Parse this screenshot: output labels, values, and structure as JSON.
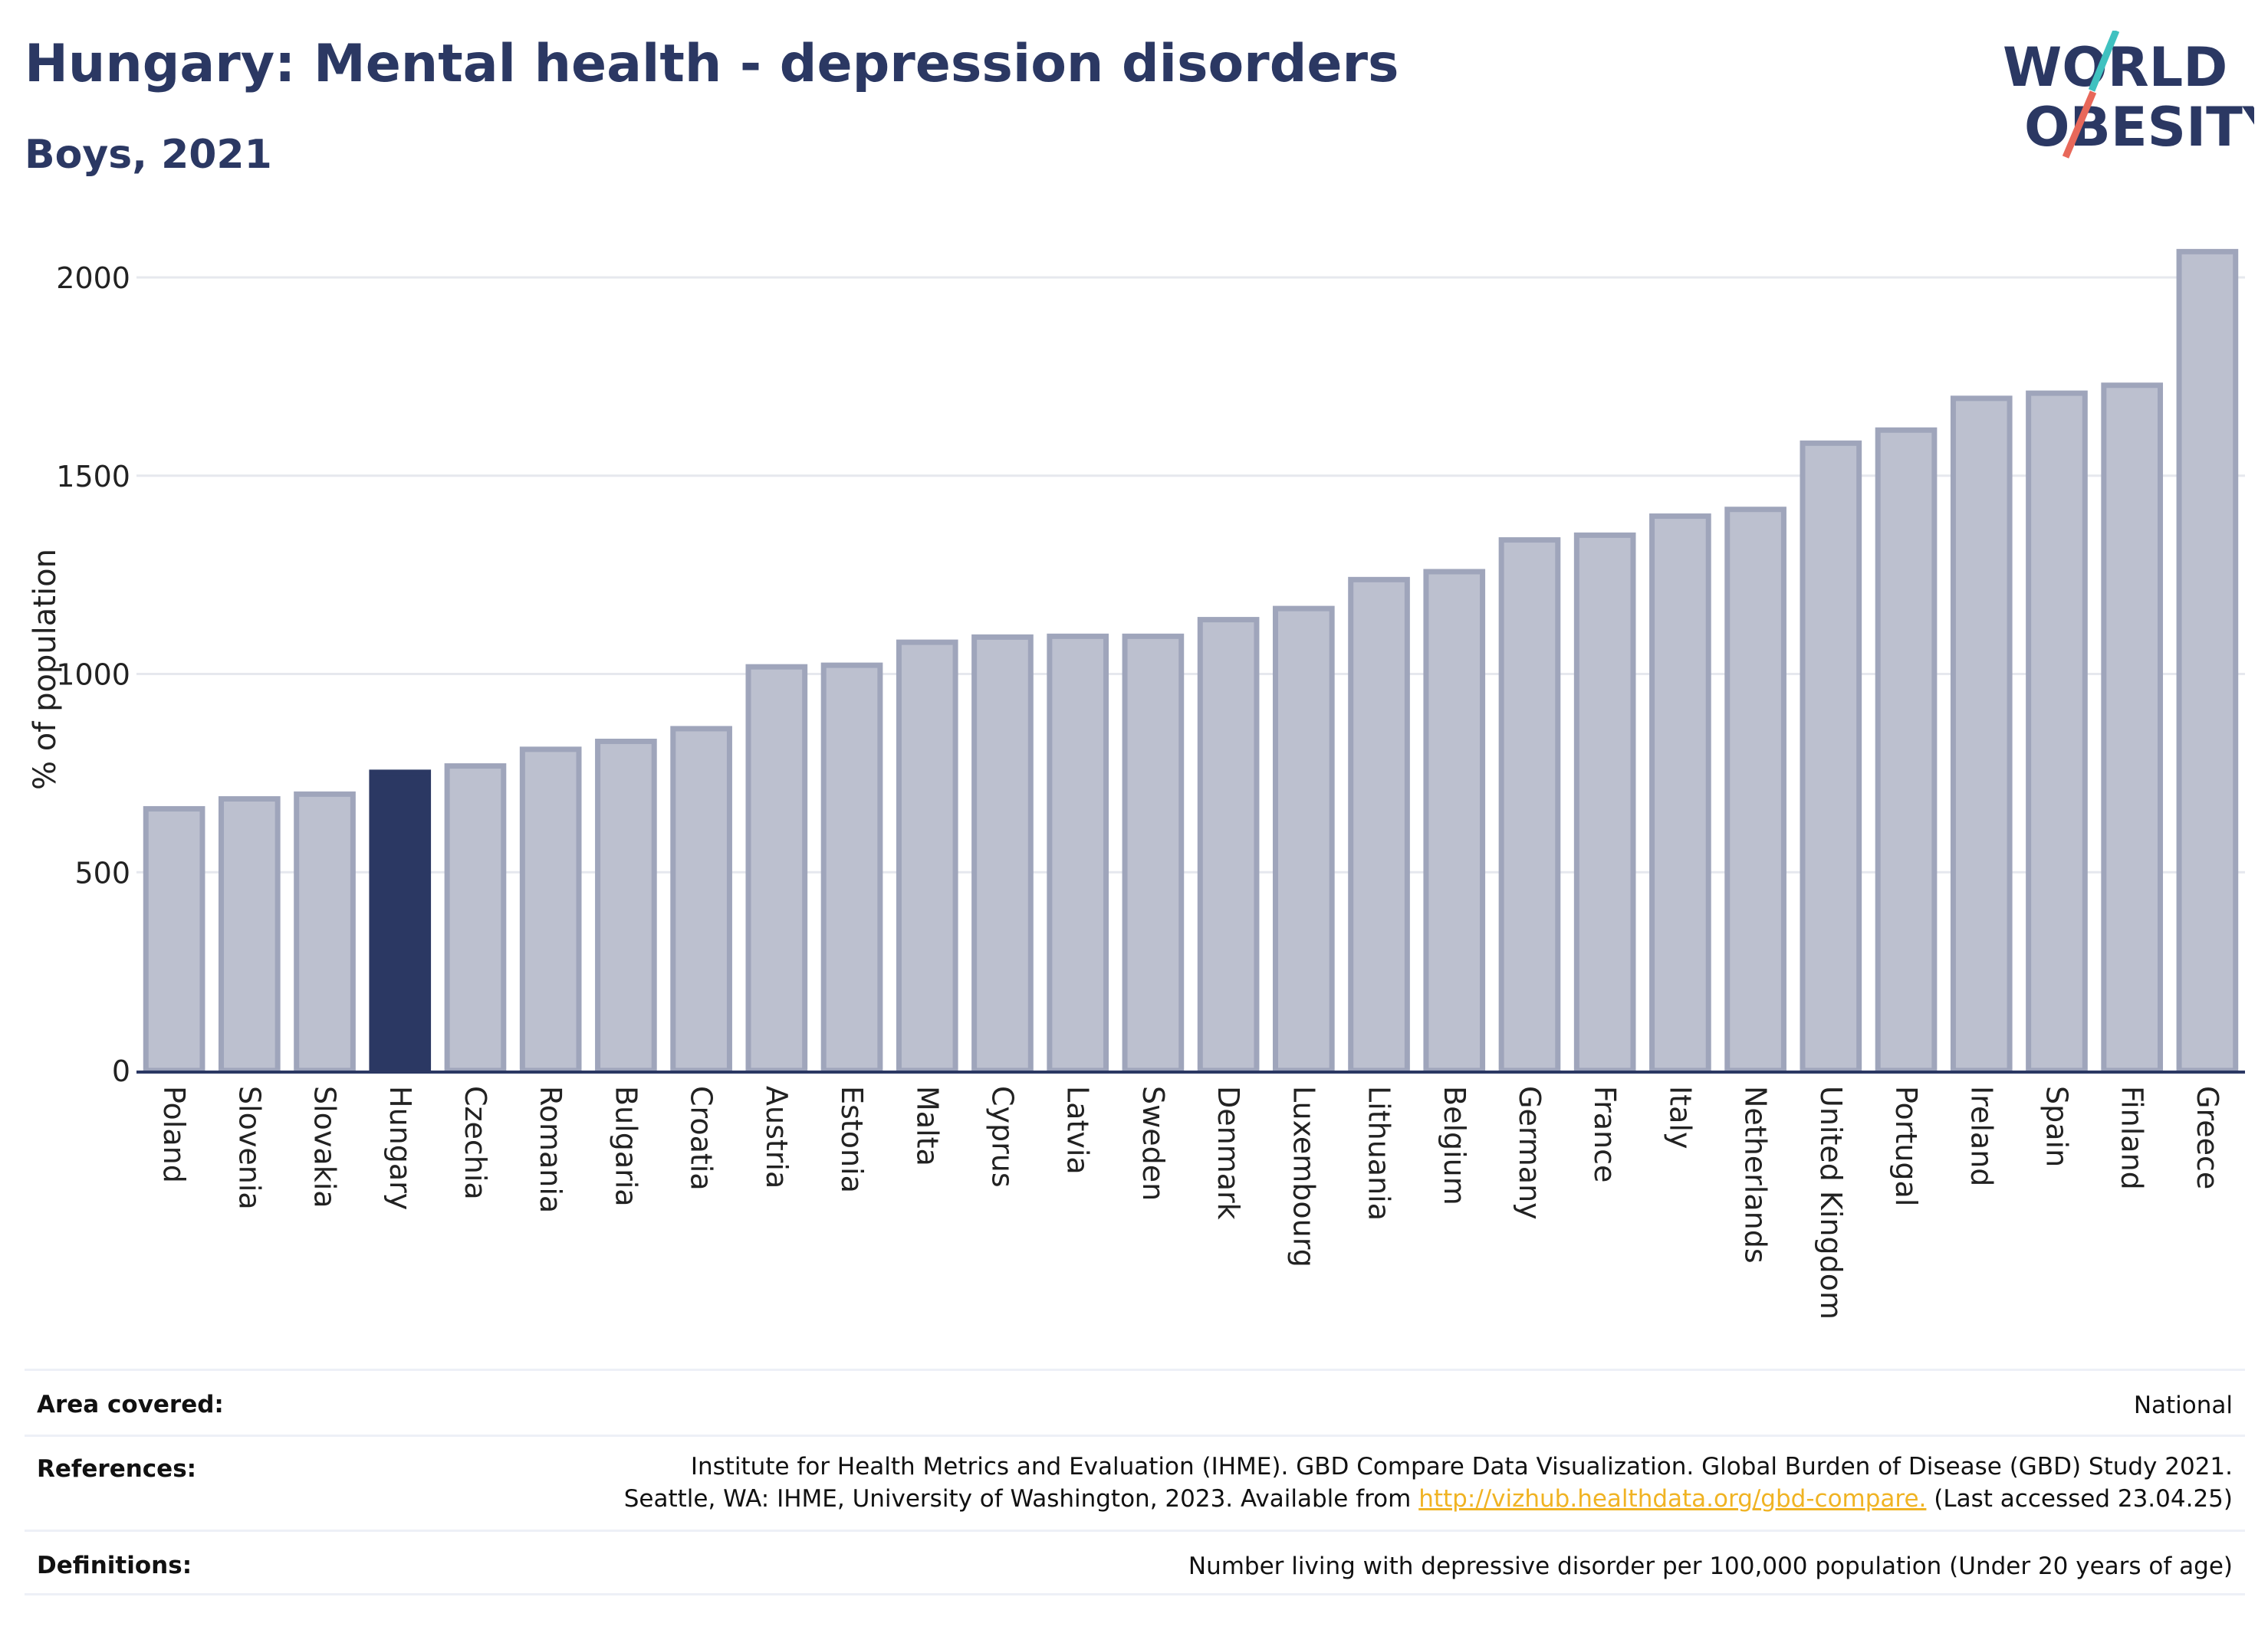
{
  "header": {
    "title": "Hungary: Mental health - depression disorders",
    "subtitle": "Boys, 2021"
  },
  "logo": {
    "line1": "WORLD",
    "line2": "OBESITY",
    "colors": {
      "text": "#2b3863",
      "slash_teal": "#3fc1c0",
      "slash_red": "#e8685a"
    }
  },
  "colors": {
    "bar_fill": "#bcc0cf",
    "bar_stroke": "#9fa5bb",
    "highlight": "#2b3863",
    "grid": "#e6e8ee",
    "axis": "#2b3863"
  },
  "chart_data": {
    "type": "bar",
    "title": "Hungary: Mental health - depression disorders",
    "subtitle": "Boys, 2021",
    "ylabel": "% of population",
    "xlabel": "",
    "ylim": [
      0,
      2100
    ],
    "yticks": [
      0,
      500,
      1000,
      1500,
      2000
    ],
    "grid": true,
    "highlight": "Hungary",
    "categories": [
      "Poland",
      "Slovenia",
      "Slovakia",
      "Hungary",
      "Czechia",
      "Romania",
      "Bulgaria",
      "Croatia",
      "Austria",
      "Estonia",
      "Malta",
      "Cyprus",
      "Latvia",
      "Sweden",
      "Denmark",
      "Luxembourg",
      "Lithuania",
      "Belgium",
      "Germany",
      "France",
      "Italy",
      "Netherlands",
      "United Kingdom",
      "Portugal",
      "Ireland",
      "Spain",
      "Finland",
      "Greece"
    ],
    "values": [
      660,
      685,
      697,
      752,
      768,
      810,
      830,
      862,
      1018,
      1022,
      1080,
      1093,
      1095,
      1095,
      1137,
      1165,
      1238,
      1258,
      1338,
      1350,
      1398,
      1415,
      1582,
      1615,
      1695,
      1708,
      1728,
      2065
    ]
  },
  "footer": {
    "area_label": "Area covered:",
    "area_value": "National",
    "references_label": "References:",
    "references_line1": "Institute for Health Metrics and Evaluation (IHME). GBD Compare Data Visualization. Global Burden of Disease (GBD) Study 2021.",
    "references_line2_pre": "Seattle, WA: IHME, University of Washington, 2023. Available from ",
    "references_link": "http://vizhub.healthdata.org/gbd-compare.",
    "references_line2_post": " (Last accessed 23.04.25)",
    "definitions_label": "Definitions:",
    "definitions_value": "Number living with depressive disorder per 100,000 population (Under 20 years of age)"
  }
}
